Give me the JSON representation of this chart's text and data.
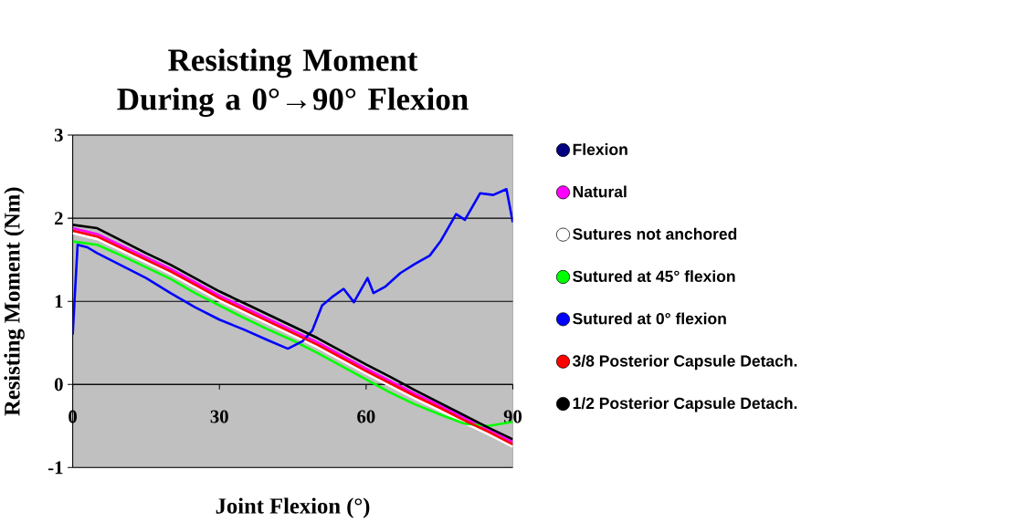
{
  "chart_data": {
    "type": "line",
    "title": "Resisting Moment During a 0°→90° Flexion",
    "xlabel": "Joint Flexion (°)",
    "ylabel": "Resisting Moment (Nm)",
    "x": [
      0,
      5,
      10,
      15,
      20,
      25,
      30,
      35,
      40,
      45,
      50,
      55,
      60,
      65,
      70,
      75,
      80,
      85,
      90
    ],
    "xlim": [
      0,
      90
    ],
    "xticks": [
      0,
      30,
      60,
      90
    ],
    "ylim": [
      -1,
      3
    ],
    "yticks": [
      -1,
      0,
      1,
      2,
      3
    ],
    "grid": "y",
    "legend": "right",
    "line_style": "solid",
    "series": [
      {
        "name": "Flexion",
        "color": "#000080",
        "values": [
          null,
          null,
          null,
          null,
          null,
          null,
          null,
          null,
          null,
          null,
          null,
          null,
          null,
          null,
          null,
          null,
          null,
          null,
          null
        ]
      },
      {
        "name": "Natural",
        "color": "#ff00ff",
        "values": [
          1.88,
          1.81,
          1.67,
          1.53,
          1.39,
          1.23,
          1.07,
          0.93,
          0.79,
          0.65,
          0.51,
          0.35,
          0.19,
          0.04,
          -0.11,
          -0.25,
          -0.4,
          -0.54,
          -0.69
        ]
      },
      {
        "name": "Sutures not anchored",
        "color": "#ffffff",
        "values": [
          1.82,
          1.75,
          1.61,
          1.47,
          1.33,
          1.17,
          1.01,
          0.87,
          0.73,
          0.59,
          0.45,
          0.29,
          0.13,
          -0.02,
          -0.17,
          -0.31,
          -0.46,
          -0.6,
          -0.75
        ]
      },
      {
        "name": "Sutured at 45° flexion",
        "color": "#00ff00",
        "values": [
          1.72,
          1.68,
          1.55,
          1.41,
          1.27,
          1.1,
          0.95,
          0.8,
          0.66,
          0.53,
          0.38,
          0.22,
          0.06,
          -0.1,
          -0.24,
          -0.36,
          -0.47,
          -0.5,
          -0.45
        ]
      },
      {
        "name": "Sutured at 0° flexion",
        "color": "#0000ff",
        "x": [
          0,
          1,
          3,
          5,
          10,
          15,
          20,
          25,
          30,
          35,
          40,
          44,
          47,
          49,
          51,
          53,
          55.4,
          57.5,
          60.3,
          61.5,
          64,
          67,
          70,
          73,
          75.3,
          78.4,
          80.2,
          83.3,
          86,
          88.7,
          90
        ],
        "values": [
          0.6,
          1.68,
          1.65,
          1.58,
          1.43,
          1.28,
          1.1,
          0.93,
          0.78,
          0.66,
          0.53,
          0.43,
          0.52,
          0.65,
          0.95,
          1.05,
          1.15,
          0.99,
          1.28,
          1.1,
          1.18,
          1.34,
          1.45,
          1.55,
          1.73,
          2.05,
          1.98,
          2.3,
          2.28,
          2.35,
          1.95
        ]
      },
      {
        "name": "3/8 Posterior Capsule Detach.",
        "color": "#ff0000",
        "values": [
          1.85,
          1.78,
          1.64,
          1.5,
          1.36,
          1.2,
          1.04,
          0.9,
          0.76,
          0.62,
          0.48,
          0.32,
          0.16,
          0.01,
          -0.14,
          -0.28,
          -0.43,
          -0.57,
          -0.72
        ]
      },
      {
        "name": "1/2 Posterior Capsule Detach.",
        "color": "#000000",
        "values": [
          1.92,
          1.88,
          1.73,
          1.58,
          1.44,
          1.28,
          1.12,
          0.98,
          0.84,
          0.7,
          0.56,
          0.4,
          0.24,
          0.09,
          -0.07,
          -0.22,
          -0.37,
          -0.52,
          -0.66
        ]
      }
    ]
  }
}
